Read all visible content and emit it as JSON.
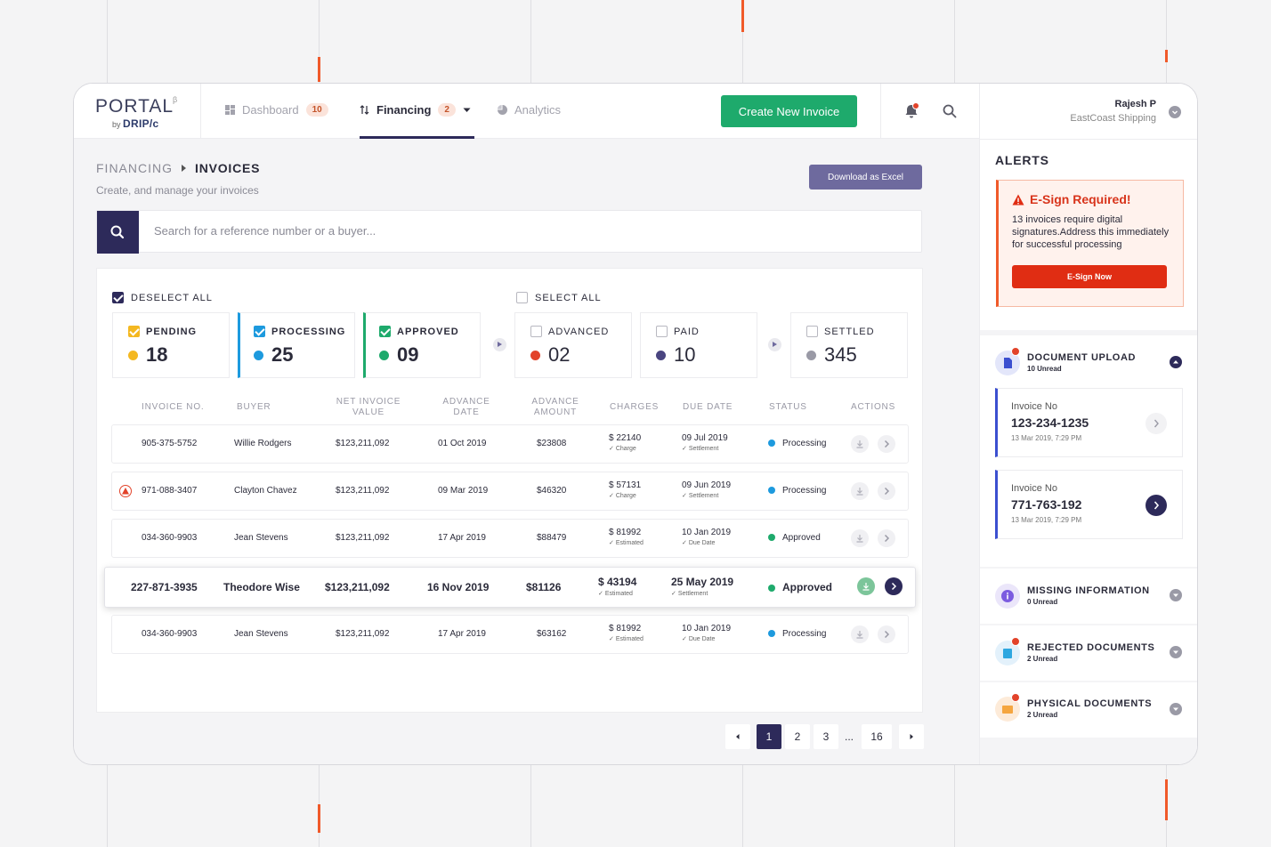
{
  "app": {
    "logo": "PORTAL",
    "logo_beta": "β",
    "logo_by": "by",
    "logo_brand": "DRIP/c"
  },
  "nav": {
    "items": [
      {
        "label": "Dashboard",
        "badge": "10"
      },
      {
        "label": "Financing",
        "badge": "2"
      },
      {
        "label": "Analytics"
      }
    ]
  },
  "header": {
    "create_button": "Create New Invoice",
    "user_name": "Rajesh P",
    "user_company": "EastCoast Shipping"
  },
  "page": {
    "breadcrumb_parent": "FINANCING",
    "breadcrumb_current": "INVOICES",
    "subtitle": "Create, and manage your invoices",
    "download_button": "Download as Excel",
    "search_placeholder": "Search for a reference number or a buyer..."
  },
  "filters": {
    "deselect_all": "DESELECT ALL",
    "select_all": "SELECT ALL",
    "stats": [
      {
        "label": "PENDING",
        "value": "18",
        "color": "#f4b821",
        "checked": true
      },
      {
        "label": "PROCESSING",
        "value": "25",
        "color": "#1d9ade",
        "checked": true
      },
      {
        "label": "APPROVED",
        "value": "09",
        "color": "#1eaa6c",
        "checked": true
      },
      {
        "label": "ADVANCED",
        "value": "02",
        "color": "#e2432a",
        "checked": false
      },
      {
        "label": "PAID",
        "value": "10",
        "color": "#4a4580",
        "checked": false
      },
      {
        "label": "SETTLED",
        "value": "345",
        "color": "#9a9aa6",
        "checked": false
      }
    ]
  },
  "table": {
    "headers": [
      "INVOICE NO.",
      "BUYER",
      "NET INVOICE VALUE",
      "ADVANCE DATE",
      "ADVANCE AMOUNT",
      "CHARGES",
      "DUE DATE",
      "STATUS",
      "ACTIONS"
    ],
    "header_net_1": "NET INVOICE",
    "header_net_2": "VALUE",
    "header_adv_date_1": "ADVANCE",
    "header_adv_date_2": "DATE",
    "header_adv_amt_1": "ADVANCE",
    "header_adv_amt_2": "AMOUNT",
    "rows": [
      {
        "invoice": "905-375-5752",
        "buyer": "Willie Rodgers",
        "net": "$123,211,092",
        "adv_date": "01 Oct 2019",
        "adv_amount": "$23808",
        "charges": "$ 22140",
        "charges_sub": "Charge",
        "due": "09 Jul 2019",
        "due_sub": "Settlement",
        "status": "Processing",
        "status_color": "#1d9ade"
      },
      {
        "invoice": "971-088-3407",
        "buyer": "Clayton Chavez",
        "net": "$123,211,092",
        "adv_date": "09 Mar 2019",
        "adv_amount": "$46320",
        "charges": "$ 57131",
        "charges_sub": "Charge",
        "due": "09 Jun 2019",
        "due_sub": "Settlement",
        "status": "Processing",
        "status_color": "#1d9ade",
        "warning": true
      },
      {
        "invoice": "034-360-9903",
        "buyer": "Jean Stevens",
        "net": "$123,211,092",
        "adv_date": "17 Apr 2019",
        "adv_amount": "$88479",
        "charges": "$ 81992",
        "charges_sub": "Estimated",
        "due": "10 Jan 2019",
        "due_sub": "Due Date",
        "status": "Approved",
        "status_color": "#1eaa6c"
      },
      {
        "invoice": "227-871-3935",
        "buyer": "Theodore Wise",
        "net": "$123,211,092",
        "adv_date": "16 Nov 2019",
        "adv_amount": "$81126",
        "charges": "$ 43194",
        "charges_sub": "Estimated",
        "due": "25 May 2019",
        "due_sub": "Settlement",
        "status": "Approved",
        "status_color": "#1eaa6c",
        "highlighted": true
      },
      {
        "invoice": "034-360-9903",
        "buyer": "Jean Stevens",
        "net": "$123,211,092",
        "adv_date": "17 Apr 2019",
        "adv_amount": "$63162",
        "charges": "$ 81992",
        "charges_sub": "Estimated",
        "due": "10 Jan 2019",
        "due_sub": "Due Date",
        "status": "Processing",
        "status_color": "#1d9ade"
      }
    ]
  },
  "pagination": {
    "pages": [
      "1",
      "2",
      "3",
      "...",
      "16"
    ],
    "current": "1"
  },
  "alerts": {
    "title": "ALERTS",
    "esign_title": "E-Sign Required!",
    "esign_text": "13 invoices require digital signatures.Address this immediately for successful processing",
    "esign_button": "E-Sign Now"
  },
  "documents": {
    "upload": {
      "title": "DOCUMENT UPLOAD",
      "sub": "10 Unread"
    },
    "invoices": [
      {
        "label": "Invoice No",
        "number": "123-234-1235",
        "date": "13 Mar 2019, 7:29 PM"
      },
      {
        "label": "Invoice No",
        "number": "771-763-192",
        "date": "13 Mar 2019, 7:29 PM"
      }
    ],
    "missing": {
      "title": "MISSING INFORMATION",
      "sub": "0 Unread"
    },
    "rejected": {
      "title": "REJECTED DOCUMENTS",
      "sub": "2 Unread"
    },
    "physical": {
      "title": "PHYSICAL DOCUMENTS",
      "sub": "2 Unread"
    }
  }
}
